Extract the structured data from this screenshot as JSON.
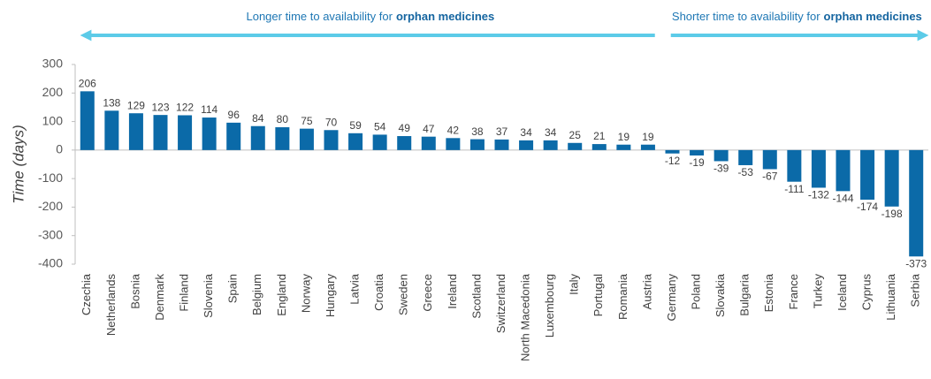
{
  "chart_data": {
    "type": "bar",
    "y_label": "Time (days)",
    "annotations": [
      {
        "prefix": "Longer time to availability for",
        "emphasis": "orphan medicines"
      },
      {
        "prefix": "Shorter time to availability for",
        "emphasis": "orphan medicines"
      }
    ],
    "categories": [
      "Czechia",
      "Netherlands",
      "Bosnia",
      "Denmark",
      "Finland",
      "Slovenia",
      "Spain",
      "Belgium",
      "England",
      "Norway",
      "Hungary",
      "Latvia",
      "Croatia",
      "Sweden",
      "Greece",
      "Ireland",
      "Scotland",
      "Switzerland",
      "North Macedonia",
      "Luxembourg",
      "Italy",
      "Portugal",
      "Romania",
      "Austria",
      "Germany",
      "Poland",
      "Slovakia",
      "Bulgaria",
      "Estonia",
      "France",
      "Turkey",
      "Iceland",
      "Cyprus",
      "Lithuania",
      "Serbia"
    ],
    "values": [
      206,
      138,
      129,
      123,
      122,
      114,
      96,
      84,
      80,
      75,
      70,
      59,
      54,
      49,
      47,
      42,
      38,
      37,
      34,
      34,
      25,
      21,
      19,
      19,
      -12,
      -19,
      -39,
      -53,
      -67,
      -111,
      -132,
      -144,
      -174,
      -198,
      -373
    ],
    "color": "#0b6aa8",
    "arrow_color": "#5ccbe8",
    "ylim": [
      -400,
      300
    ],
    "yticks": [
      -400,
      -300,
      -200,
      -100,
      0,
      100,
      200,
      300
    ],
    "grid": false
  }
}
